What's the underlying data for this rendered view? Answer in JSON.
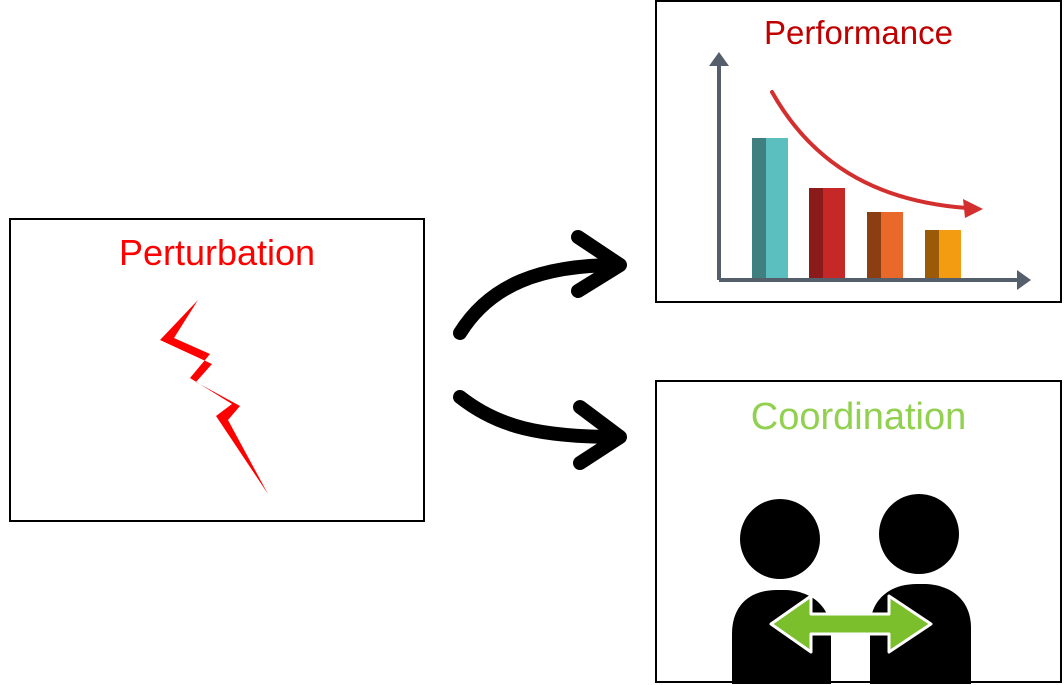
{
  "perturbation": {
    "title": "Perturbation",
    "title_color": "#ff0000",
    "icon": "lightning-bolt-icon",
    "icon_color": "#ff0000"
  },
  "performance": {
    "title": "Performance",
    "title_color": "#c00000",
    "icon": "declining-bar-chart-icon",
    "trend_arrow_color": "#d32f2f",
    "bar_colors": [
      "#5bbfbf",
      "#c62828",
      "#e8692a",
      "#f39c12"
    ],
    "bar_heights_relative": [
      1.0,
      0.65,
      0.48,
      0.34
    ]
  },
  "coordination": {
    "title": "Coordination",
    "title_color": "#92d050",
    "icon": "two-people-interaction-icon",
    "people_color": "#000000",
    "double_arrow_color": "#7cbf2c"
  },
  "connectors": {
    "icons": [
      "curved-arrow-up-icon",
      "curved-arrow-down-icon"
    ],
    "color": "#000000"
  }
}
